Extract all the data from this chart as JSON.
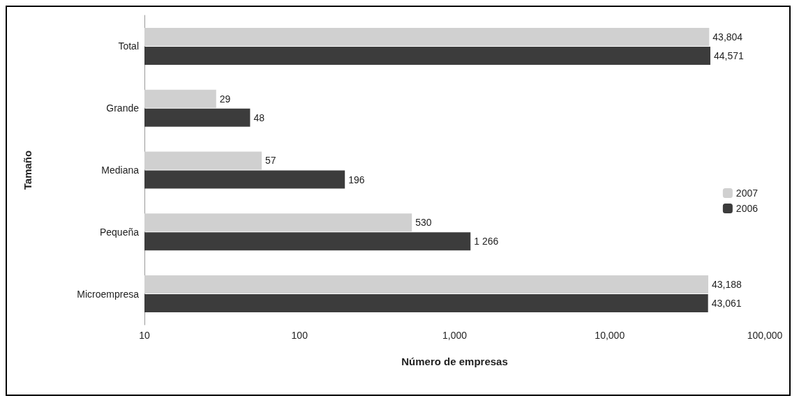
{
  "chart_data": {
    "type": "bar",
    "orientation": "horizontal",
    "xlabel": "Número de empresas",
    "ylabel": "Tamaño",
    "categories": [
      "Total",
      "Grande",
      "Mediana",
      "Pequeña",
      "Microempresa"
    ],
    "series": [
      {
        "name": "2007",
        "color": "#d0d0d0",
        "values": [
          43804,
          29,
          57,
          530,
          43188
        ],
        "value_labels": [
          "43,804",
          "29",
          "57",
          "530",
          "43,188"
        ]
      },
      {
        "name": "2006",
        "color": "#3c3c3c",
        "values": [
          44571,
          48,
          196,
          1266,
          43061
        ],
        "value_labels": [
          "44,571",
          "48",
          "196",
          "1 266",
          "43,061"
        ]
      }
    ],
    "log": "x",
    "xlim": [
      10,
      100000
    ],
    "xticks": [
      10,
      100,
      {
        "value": 1000,
        "label": "1,000"
      },
      {
        "value": 10000,
        "label": "10,000"
      },
      {
        "value": 100000,
        "label": "100,000"
      }
    ],
    "grid": false,
    "legend": "right"
  }
}
